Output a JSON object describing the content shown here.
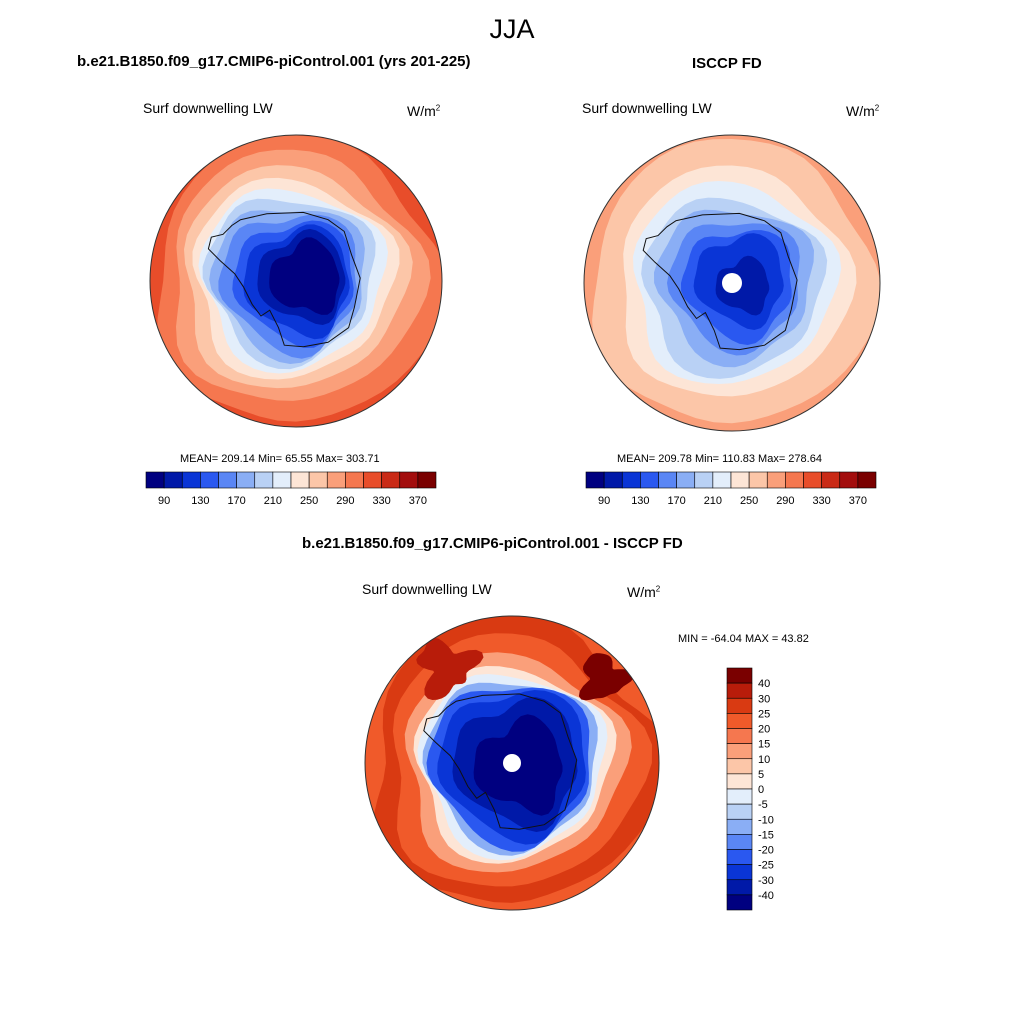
{
  "page": {
    "title": "JJA"
  },
  "panels": [
    {
      "title": "b.e21.B1850.f09_g17.CMIP6-piControl.001 (yrs 201-225)",
      "variable": "Surf downwelling LW",
      "units_base": "W/m",
      "units_exp": "2",
      "stats": "MEAN= 209.14  Min=  65.55  Max= 303.71"
    },
    {
      "title": "ISCCP FD",
      "variable": "Surf downwelling LW",
      "units_base": "W/m",
      "units_exp": "2",
      "stats": "MEAN= 209.78  Min= 110.83  Max= 278.64"
    },
    {
      "title": "b.e21.B1850.f09_g17.CMIP6-piControl.001 - ISCCP FD",
      "variable": "Surf downwelling LW",
      "units_base": "W/m",
      "units_exp": "2",
      "stats": "MIN = -64.04 MAX =  43.82"
    }
  ],
  "colors": {
    "abs_scale": [
      "#000080",
      "#0019A8",
      "#0A35D6",
      "#2A58F0",
      "#5A86F5",
      "#8AAEF5",
      "#B9D1F5",
      "#E3EEFB",
      "#FDE5D6",
      "#FCC6A8",
      "#FA9F7A",
      "#F5774F",
      "#E84D2A",
      "#C92A16",
      "#A30E0E",
      "#7A0000"
    ],
    "diff_scale": [
      "#000080",
      "#0019A8",
      "#0A35D6",
      "#2A58F0",
      "#5A86F5",
      "#8AAEF5",
      "#B9D1F5",
      "#E3EEFB",
      "#FDE5D6",
      "#FCC6A8",
      "#FA9F7A",
      "#F5774F",
      "#F05A2A",
      "#D93A12",
      "#B81C0A",
      "#7A0000"
    ]
  },
  "chart_data": [
    {
      "type": "heatmap",
      "title": "b.e21.B1850.f09_g17.CMIP6-piControl.001 (yrs 201-225)",
      "subtitle": "Surf downwelling LW",
      "units": "W/m2",
      "projection": "south polar stereographic",
      "colorbar_ticks": [
        90,
        130,
        170,
        210,
        250,
        290,
        330,
        370
      ],
      "contour_levels": [
        70,
        90,
        110,
        130,
        150,
        170,
        190,
        210,
        230,
        250,
        270,
        290,
        310,
        330,
        350,
        370
      ],
      "stats": {
        "mean": 209.14,
        "min": 65.55,
        "max": 303.71
      },
      "legend_placement": "bottom"
    },
    {
      "type": "heatmap",
      "title": "ISCCP FD",
      "subtitle": "Surf downwelling LW",
      "units": "W/m2",
      "projection": "south polar stereographic",
      "colorbar_ticks": [
        90,
        130,
        170,
        210,
        250,
        290,
        330,
        370
      ],
      "contour_levels": [
        70,
        90,
        110,
        130,
        150,
        170,
        190,
        210,
        230,
        250,
        270,
        290,
        310,
        330,
        350,
        370
      ],
      "stats": {
        "mean": 209.78,
        "min": 110.83,
        "max": 278.64
      },
      "legend_placement": "bottom"
    },
    {
      "type": "heatmap",
      "title": "b.e21.B1850.f09_g17.CMIP6-piControl.001 - ISCCP FD",
      "subtitle": "Surf downwelling LW",
      "units": "W/m2",
      "projection": "south polar stereographic",
      "colorbar_ticks": [
        40,
        30,
        25,
        20,
        15,
        10,
        5,
        0,
        -5,
        -10,
        -15,
        -20,
        -25,
        -30,
        -40
      ],
      "stats": {
        "min": -64.04,
        "max": 43.82
      },
      "legend_placement": "right"
    }
  ]
}
